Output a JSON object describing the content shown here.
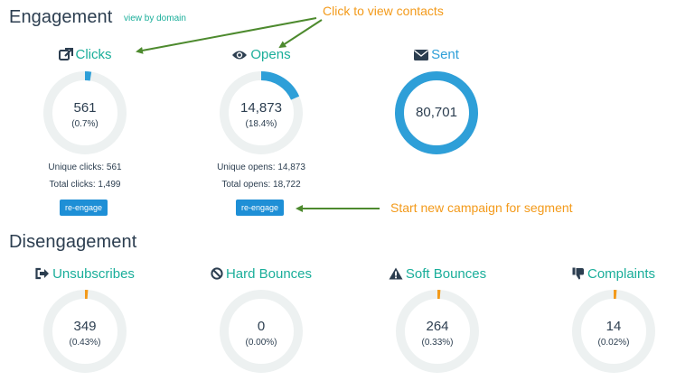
{
  "engagement": {
    "title": "Engagement",
    "view_by_domain": "view by domain",
    "metrics": [
      {
        "label": "Clicks",
        "value": "561",
        "pct": "(0.7%)",
        "fraction": 0.007,
        "unique": "Unique clicks: 561",
        "total": "Total clicks: 1,499",
        "button": "re-engage"
      },
      {
        "label": "Opens",
        "value": "14,873",
        "pct": "(18.4%)",
        "fraction": 0.184,
        "unique": "Unique opens: 14,873",
        "total": "Total opens: 18,722",
        "button": "re-engage"
      },
      {
        "label": "Sent",
        "value": "80,701",
        "fraction": 1.0
      }
    ]
  },
  "disengagement": {
    "title": "Disengagement",
    "metrics": [
      {
        "label": "Unsubscribes",
        "value": "349",
        "pct": "(0.43%)",
        "fraction": 0.0043
      },
      {
        "label": "Hard Bounces",
        "value": "0",
        "pct": "(0.00%)",
        "fraction": 0.0
      },
      {
        "label": "Soft Bounces",
        "value": "264",
        "pct": "(0.33%)",
        "fraction": 0.0033
      },
      {
        "label": "Complaints",
        "value": "14",
        "pct": "(0.02%)",
        "fraction": 0.0002
      }
    ]
  },
  "annotations": {
    "click_contacts": "Click to view contacts",
    "new_campaign": "Start new campaign for segment"
  },
  "colors": {
    "accent_green": "#1aae9a",
    "blue": "#2e9fd8",
    "orange": "#f39a1a",
    "track": "#edf1f1",
    "arrow": "#4d8a2e"
  }
}
